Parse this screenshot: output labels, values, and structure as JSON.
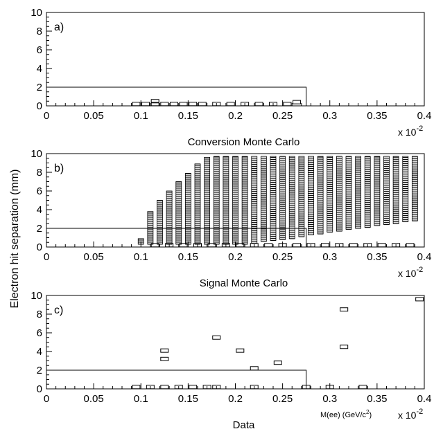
{
  "figure": {
    "ylabel": "Electron hit separation (mm)",
    "mark_color": "#000000",
    "background": "#ffffff"
  },
  "chart_data": [
    {
      "type": "box",
      "panel_label": "a)",
      "title": "",
      "caption": "Conversion Monte Carlo",
      "xlabel": "",
      "x_exponent_label": "x 10",
      "x_exponent_power": "-2",
      "xlim": [
        0,
        0.4
      ],
      "ylim": [
        0,
        10
      ],
      "xticks": [
        "0",
        "0.05",
        "0.1",
        "0.15",
        "0.2",
        "0.25",
        "0.3",
        "0.35",
        "0.4"
      ],
      "yticks": [
        "0",
        "2",
        "4",
        "6",
        "8",
        "10"
      ],
      "cut_region": {
        "x_max": 0.275,
        "y_max": 2
      },
      "boxes": [
        {
          "x": 0.095,
          "y": 0.2
        },
        {
          "x": 0.105,
          "y": 0.2
        },
        {
          "x": 0.115,
          "y": 0.2
        },
        {
          "x": 0.125,
          "y": 0.2
        },
        {
          "x": 0.135,
          "y": 0.2
        },
        {
          "x": 0.145,
          "y": 0.2
        },
        {
          "x": 0.155,
          "y": 0.2
        },
        {
          "x": 0.165,
          "y": 0.2
        },
        {
          "x": 0.18,
          "y": 0.2
        },
        {
          "x": 0.195,
          "y": 0.2
        },
        {
          "x": 0.21,
          "y": 0.2
        },
        {
          "x": 0.225,
          "y": 0.2
        },
        {
          "x": 0.24,
          "y": 0.2
        },
        {
          "x": 0.255,
          "y": 0.2
        },
        {
          "x": 0.115,
          "y": 0.5
        },
        {
          "x": 0.265,
          "y": 0.4
        }
      ]
    },
    {
      "type": "box",
      "panel_label": "b)",
      "title": "",
      "caption": "Signal Monte Carlo",
      "xlabel": "",
      "x_exponent_label": "x 10",
      "x_exponent_power": "-2",
      "xlim": [
        0,
        0.4
      ],
      "ylim": [
        0,
        10
      ],
      "xticks": [
        "0",
        "0.05",
        "0.1",
        "0.15",
        "0.2",
        "0.25",
        "0.3",
        "0.35",
        "0.4"
      ],
      "yticks": [
        "0",
        "2",
        "4",
        "6",
        "8",
        "10"
      ],
      "cut_region": {
        "x_max": 0.275,
        "y_max": 2
      },
      "columns": [
        {
          "x": 0.1,
          "y_min": 0.3,
          "y_max": 0.9
        },
        {
          "x": 0.11,
          "y_min": 0.3,
          "y_max": 3.8
        },
        {
          "x": 0.12,
          "y_min": 0.3,
          "y_max": 5.0
        },
        {
          "x": 0.13,
          "y_min": 0.3,
          "y_max": 6.0
        },
        {
          "x": 0.14,
          "y_min": 0.3,
          "y_max": 7.0
        },
        {
          "x": 0.15,
          "y_min": 0.3,
          "y_max": 7.9
        },
        {
          "x": 0.16,
          "y_min": 0.3,
          "y_max": 8.9
        },
        {
          "x": 0.17,
          "y_min": 0.3,
          "y_max": 9.6
        },
        {
          "x": 0.18,
          "y_min": 0.3,
          "y_max": 9.7
        },
        {
          "x": 0.19,
          "y_min": 0.3,
          "y_max": 9.7
        },
        {
          "x": 0.2,
          "y_min": 0.3,
          "y_max": 9.7
        },
        {
          "x": 0.21,
          "y_min": 0.3,
          "y_max": 9.7
        },
        {
          "x": 0.22,
          "y_min": 0.4,
          "y_max": 9.7
        },
        {
          "x": 0.23,
          "y_min": 0.6,
          "y_max": 9.7
        },
        {
          "x": 0.24,
          "y_min": 0.7,
          "y_max": 9.7
        },
        {
          "x": 0.25,
          "y_min": 0.8,
          "y_max": 9.7
        },
        {
          "x": 0.26,
          "y_min": 0.9,
          "y_max": 9.7
        },
        {
          "x": 0.27,
          "y_min": 1.1,
          "y_max": 9.7
        },
        {
          "x": 0.28,
          "y_min": 1.3,
          "y_max": 9.7
        },
        {
          "x": 0.29,
          "y_min": 1.4,
          "y_max": 9.7
        },
        {
          "x": 0.3,
          "y_min": 1.6,
          "y_max": 9.7
        },
        {
          "x": 0.31,
          "y_min": 1.7,
          "y_max": 9.7
        },
        {
          "x": 0.32,
          "y_min": 1.9,
          "y_max": 9.7
        },
        {
          "x": 0.33,
          "y_min": 2.0,
          "y_max": 9.7
        },
        {
          "x": 0.34,
          "y_min": 2.1,
          "y_max": 9.7
        },
        {
          "x": 0.35,
          "y_min": 2.3,
          "y_max": 9.7
        },
        {
          "x": 0.36,
          "y_min": 2.4,
          "y_max": 9.7
        },
        {
          "x": 0.37,
          "y_min": 2.5,
          "y_max": 9.7
        },
        {
          "x": 0.38,
          "y_min": 2.7,
          "y_max": 9.7
        },
        {
          "x": 0.39,
          "y_min": 2.8,
          "y_max": 9.7
        }
      ],
      "baseline_boxes": [
        {
          "x": 0.115,
          "y": 0.2
        },
        {
          "x": 0.13,
          "y": 0.2
        },
        {
          "x": 0.145,
          "y": 0.2
        },
        {
          "x": 0.16,
          "y": 0.2
        },
        {
          "x": 0.175,
          "y": 0.2
        },
        {
          "x": 0.19,
          "y": 0.2
        },
        {
          "x": 0.205,
          "y": 0.2
        },
        {
          "x": 0.22,
          "y": 0.2
        },
        {
          "x": 0.235,
          "y": 0.2
        },
        {
          "x": 0.25,
          "y": 0.2
        },
        {
          "x": 0.265,
          "y": 0.2
        },
        {
          "x": 0.28,
          "y": 0.2
        },
        {
          "x": 0.295,
          "y": 0.2
        },
        {
          "x": 0.31,
          "y": 0.2
        },
        {
          "x": 0.325,
          "y": 0.2
        },
        {
          "x": 0.34,
          "y": 0.2
        },
        {
          "x": 0.355,
          "y": 0.2
        },
        {
          "x": 0.37,
          "y": 0.2
        },
        {
          "x": 0.385,
          "y": 0.2
        }
      ]
    },
    {
      "type": "box",
      "panel_label": "c)",
      "title": "",
      "caption": "Data",
      "xlabel": "M(ee) (GeV/c",
      "xlabel_power": "2",
      "xlabel_suffix": ")",
      "x_exponent_label": "x 10",
      "x_exponent_power": "-2",
      "xlim": [
        0,
        0.4
      ],
      "ylim": [
        0,
        10
      ],
      "xticks": [
        "0",
        "0.05",
        "0.1",
        "0.15",
        "0.2",
        "0.25",
        "0.3",
        "0.35",
        "0.4"
      ],
      "yticks": [
        "0",
        "2",
        "4",
        "6",
        "8",
        "10"
      ],
      "cut_region": {
        "x_max": 0.275,
        "y_max": 2
      },
      "boxes": [
        {
          "x": 0.125,
          "y": 4.1
        },
        {
          "x": 0.125,
          "y": 3.2
        },
        {
          "x": 0.18,
          "y": 5.5
        },
        {
          "x": 0.205,
          "y": 4.1
        },
        {
          "x": 0.22,
          "y": 2.2
        },
        {
          "x": 0.245,
          "y": 2.8
        },
        {
          "x": 0.315,
          "y": 8.5
        },
        {
          "x": 0.315,
          "y": 4.5
        },
        {
          "x": 0.395,
          "y": 9.6
        },
        {
          "x": 0.095,
          "y": 0.2
        },
        {
          "x": 0.11,
          "y": 0.2
        },
        {
          "x": 0.125,
          "y": 0.2
        },
        {
          "x": 0.14,
          "y": 0.2
        },
        {
          "x": 0.155,
          "y": 0.2
        },
        {
          "x": 0.17,
          "y": 0.2
        },
        {
          "x": 0.18,
          "y": 0.2
        },
        {
          "x": 0.22,
          "y": 0.2
        },
        {
          "x": 0.275,
          "y": 0.2
        },
        {
          "x": 0.3,
          "y": 0.2
        },
        {
          "x": 0.335,
          "y": 0.2
        }
      ]
    }
  ]
}
